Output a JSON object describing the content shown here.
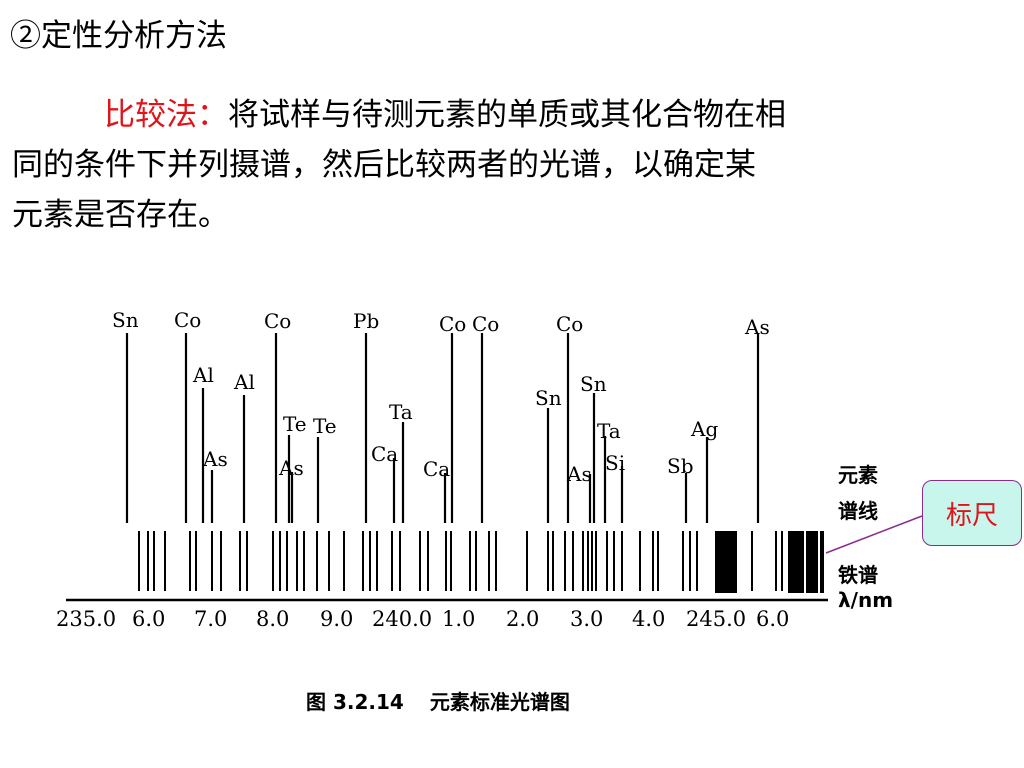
{
  "heading": "②定性分析方法",
  "paragraph": {
    "term": "比较法：",
    "line1": "将试样与待测元素的单质或其化合物在相",
    "line2": "同的条件下并列摄谱，然后比较两者的光谱，以确定某",
    "line3": "元素是否存在。"
  },
  "diagram": {
    "side_labels": {
      "element_lines_1": "元素",
      "element_lines_2": "谱线",
      "iron_spectrum": "铁谱",
      "wavelength_unit": "λ/nm"
    },
    "axis_ticks": [
      "235.0",
      "6.0",
      "7.0",
      "8.0",
      "9.0",
      "240.0",
      "1.0",
      "2.0",
      "3.0",
      "4.0",
      "245.0",
      "6.0"
    ],
    "element_lines": [
      {
        "symbol": "Sn"
      },
      {
        "symbol": "Co"
      },
      {
        "symbol": "Al"
      },
      {
        "symbol": "As"
      },
      {
        "symbol": "Al"
      },
      {
        "symbol": "Co"
      },
      {
        "symbol": "Te"
      },
      {
        "symbol": "As"
      },
      {
        "symbol": "Te"
      },
      {
        "symbol": "Pb"
      },
      {
        "symbol": "Ca"
      },
      {
        "symbol": "Ta"
      },
      {
        "symbol": "Ca"
      },
      {
        "symbol": "Co"
      },
      {
        "symbol": "Co"
      },
      {
        "symbol": "Sn"
      },
      {
        "symbol": "Co"
      },
      {
        "symbol": "As"
      },
      {
        "symbol": "Sn"
      },
      {
        "symbol": "Ta"
      },
      {
        "symbol": "Si"
      },
      {
        "symbol": "Sb"
      },
      {
        "symbol": "Ag"
      },
      {
        "symbol": "As"
      }
    ],
    "callout": "标尺",
    "caption_number": "图 3.2.14",
    "caption_title": "元素标准光谱图"
  }
}
